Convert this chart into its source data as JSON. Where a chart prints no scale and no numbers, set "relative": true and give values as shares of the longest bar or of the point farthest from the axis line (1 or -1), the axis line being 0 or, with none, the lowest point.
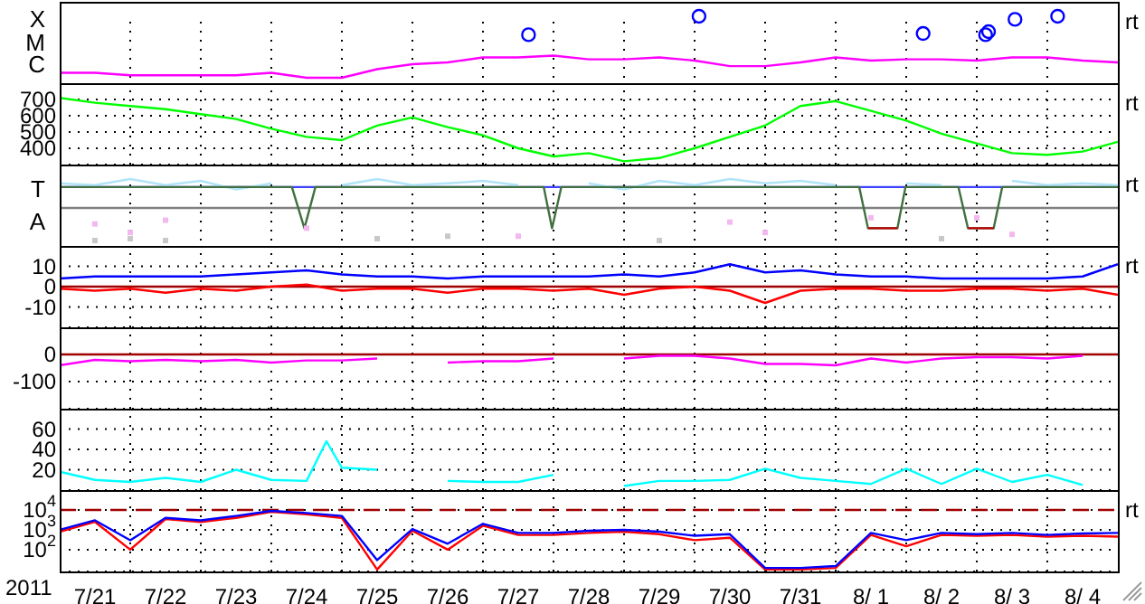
{
  "chart_data": [
    {
      "type": "line",
      "relative": true,
      "grid": "x",
      "tick_labels": "y",
      "annotations": [
        "X",
        "M",
        "C",
        "rt"
      ],
      "x": [
        "2011-07-21T00:00",
        "2011-07-21T12:00",
        "2011-07-22T00:00",
        "2011-07-22T12:00",
        "2011-07-23T00:00",
        "2011-07-23T12:00",
        "2011-07-24T00:00",
        "2011-07-24T12:00",
        "2011-07-25T00:00",
        "2011-07-25T12:00",
        "2011-07-26T00:00",
        "2011-07-26T12:00",
        "2011-07-27T00:00",
        "2011-07-27T12:00",
        "2011-07-28T00:00",
        "2011-07-28T12:00",
        "2011-07-29T00:00",
        "2011-07-29T12:00",
        "2011-07-30T00:00",
        "2011-07-30T12:00",
        "2011-07-31T00:00",
        "2011-07-31T12:00",
        "2011-08-01T00:00",
        "2011-08-01T12:00",
        "2011-08-02T00:00",
        "2011-08-02T12:00",
        "2011-08-03T00:00",
        "2011-08-03T12:00",
        "2011-08-04T00:00",
        "2011-08-04T12:00",
        "2011-08-05T00:00"
      ],
      "xlim": [
        "2011-07-21",
        "2011-08-05"
      ],
      "xticks": [
        {
          "value": "2011-07-22",
          "label": null
        },
        {
          "value": "2011-07-23",
          "label": null
        },
        {
          "value": "2011-07-24",
          "label": null
        },
        {
          "value": "2011-07-25",
          "label": null
        },
        {
          "value": "2011-07-26",
          "label": null
        },
        {
          "value": "2011-07-27",
          "label": null
        },
        {
          "value": "2011-07-28",
          "label": null
        },
        {
          "value": "2011-07-29",
          "label": null
        },
        {
          "value": "2011-07-30",
          "label": null
        },
        {
          "value": "2011-07-31",
          "label": null
        },
        {
          "value": "2011-08-01",
          "label": null
        },
        {
          "value": "2011-08-02",
          "label": null
        },
        {
          "value": "2011-08-03",
          "label": null
        },
        {
          "value": "2011-08-04",
          "label": null
        }
      ],
      "series": [
        {
          "color": "#ff00ff",
          "values": [
            0.08,
            0.08,
            0.04,
            0.04,
            0.04,
            0.04,
            0.08,
            0,
            0,
            0.14,
            0.22,
            0.25,
            0.33,
            0.33,
            0.36,
            0.3,
            0.3,
            0.33,
            0.28,
            0.19,
            0.19,
            0.25,
            0.33,
            0.28,
            0.3,
            0.3,
            0.28,
            0.33,
            0.33,
            0.28,
            0.25
          ]
        },
        {
          "type": "scatter",
          "marker": "circle",
          "color": "#0000ff",
          "x": [
            "2011-07-27T15:30",
            "2011-07-30T01:30",
            "2011-08-02T05:45",
            "2011-08-03T03:00",
            "2011-08-03T04:00",
            "2011-08-03T13:00",
            "2011-08-04T03:30"
          ],
          "values": [
            0.7,
            1,
            0.72,
            0.7,
            0.75,
            0.95,
            1
          ]
        }
      ]
    },
    {
      "type": "line",
      "grid": true,
      "tick_labels": "y",
      "annotations": [
        "rt"
      ],
      "x": [
        "2011-07-21T00:00",
        "2011-07-21T12:00",
        "2011-07-22T00:00",
        "2011-07-22T12:00",
        "2011-07-23T00:00",
        "2011-07-23T12:00",
        "2011-07-24T00:00",
        "2011-07-24T12:00",
        "2011-07-25T00:00",
        "2011-07-25T12:00",
        "2011-07-26T00:00",
        "2011-07-26T12:00",
        "2011-07-27T00:00",
        "2011-07-27T12:00",
        "2011-07-28T00:00",
        "2011-07-28T12:00",
        "2011-07-29T00:00",
        "2011-07-29T12:00",
        "2011-07-30T00:00",
        "2011-07-30T12:00",
        "2011-07-31T00:00",
        "2011-07-31T12:00",
        "2011-08-01T00:00",
        "2011-08-01T12:00",
        "2011-08-02T00:00",
        "2011-08-02T12:00",
        "2011-08-03T00:00",
        "2011-08-03T12:00",
        "2011-08-04T00:00",
        "2011-08-04T12:00",
        "2011-08-05T00:00"
      ],
      "xlim": [
        "2011-07-21",
        "2011-08-05"
      ],
      "xticks": [
        {
          "value": "2011-07-22",
          "label": null
        },
        {
          "value": "2011-07-23",
          "label": null
        },
        {
          "value": "2011-07-24",
          "label": null
        },
        {
          "value": "2011-07-25",
          "label": null
        },
        {
          "value": "2011-07-26",
          "label": null
        },
        {
          "value": "2011-07-27",
          "label": null
        },
        {
          "value": "2011-07-28",
          "label": null
        },
        {
          "value": "2011-07-29",
          "label": null
        },
        {
          "value": "2011-07-30",
          "label": null
        },
        {
          "value": "2011-07-31",
          "label": null
        },
        {
          "value": "2011-08-01",
          "label": null
        },
        {
          "value": "2011-08-02",
          "label": null
        },
        {
          "value": "2011-08-03",
          "label": null
        },
        {
          "value": "2011-08-04",
          "label": null
        }
      ],
      "ylim": [
        300,
        800
      ],
      "yticks": [
        400,
        500,
        600,
        700
      ],
      "series": [
        {
          "color": "#00ff00",
          "values": [
            710,
            680,
            660,
            640,
            610,
            580,
            520,
            470,
            450,
            540,
            590,
            530,
            480,
            400,
            350,
            370,
            320,
            340,
            400,
            470,
            540,
            660,
            690,
            630,
            570,
            490,
            430,
            370,
            360,
            380,
            440
          ]
        }
      ]
    },
    {
      "type": "line",
      "relative": true,
      "grid": "x",
      "tick_labels": "y",
      "annotations": [
        "T",
        "A",
        "rt"
      ],
      "x": [
        "2011-07-21T00:00",
        "2011-07-21T12:00",
        "2011-07-22T00:00",
        "2011-07-22T12:00",
        "2011-07-23T00:00",
        "2011-07-23T12:00",
        "2011-07-24T00:00",
        "2011-07-24T12:00",
        "2011-07-25T00:00",
        "2011-07-25T12:00",
        "2011-07-26T00:00",
        "2011-07-26T12:00",
        "2011-07-27T00:00",
        "2011-07-27T12:00",
        "2011-07-28T00:00",
        "2011-07-28T12:00",
        "2011-07-29T00:00",
        "2011-07-29T12:00",
        "2011-07-30T00:00",
        "2011-07-30T12:00",
        "2011-07-31T00:00",
        "2011-07-31T12:00",
        "2011-08-01T00:00",
        "2011-08-01T12:00",
        "2011-08-02T00:00",
        "2011-08-02T12:00",
        "2011-08-03T00:00",
        "2011-08-03T12:00",
        "2011-08-04T00:00",
        "2011-08-04T12:00",
        "2011-08-05T00:00"
      ],
      "xlim": [
        "2011-07-21",
        "2011-08-05"
      ],
      "xticks": [
        {
          "value": "2011-07-22",
          "label": null
        },
        {
          "value": "2011-07-23",
          "label": null
        },
        {
          "value": "2011-07-24",
          "label": null
        },
        {
          "value": "2011-07-25",
          "label": null
        },
        {
          "value": "2011-07-26",
          "label": null
        },
        {
          "value": "2011-07-27",
          "label": null
        },
        {
          "value": "2011-07-28",
          "label": null
        },
        {
          "value": "2011-07-29",
          "label": null
        },
        {
          "value": "2011-07-30",
          "label": null
        },
        {
          "value": "2011-07-31",
          "label": null
        },
        {
          "value": "2011-08-01",
          "label": null
        },
        {
          "value": "2011-08-02",
          "label": null
        },
        {
          "value": "2011-08-03",
          "label": null
        },
        {
          "value": "2011-08-04",
          "label": null
        }
      ],
      "ref_lines": [
        {
          "axis": "y",
          "value": 0.87,
          "color": "#4040ff"
        },
        {
          "axis": "y",
          "value": 0.53,
          "color": "#808080"
        }
      ],
      "series": [
        {
          "color": "#b0e4f8",
          "values": [
            0.93,
            0.9,
            1,
            0.9,
            0.97,
            0.83,
            0.93,
            null,
            0.9,
            1,
            0.9,
            0.93,
            0.97,
            0.9,
            null,
            0.93,
            0.83,
            0.97,
            0.9,
            1,
            0.93,
            0.97,
            0.9,
            null,
            0.93,
            0.9,
            null,
            0.97,
            0.9,
            0.93,
            0.9
          ]
        },
        {
          "type": "scatter",
          "marker": "square",
          "color": "#f4b8f0",
          "values": [
            null,
            0.27,
            0.13,
            0.33,
            null,
            null,
            null,
            0.2,
            null,
            null,
            null,
            null,
            null,
            0.07,
            null,
            null,
            null,
            null,
            null,
            0.3,
            0.13,
            null,
            null,
            0.37,
            null,
            null,
            0.37,
            0.1,
            null,
            null,
            null
          ]
        },
        {
          "type": "scatter",
          "marker": "square",
          "color": "#c8c8c8",
          "values": [
            null,
            0,
            0.03,
            0,
            null,
            null,
            null,
            null,
            null,
            0.03,
            null,
            0.07,
            null,
            null,
            null,
            null,
            null,
            0,
            null,
            null,
            null,
            null,
            null,
            null,
            null,
            0.03,
            null,
            null,
            null,
            null,
            null
          ]
        },
        {
          "color": "#407040",
          "x": [
            "2011-07-21T00:00",
            "2011-07-24T07:00",
            "2011-07-24T11:15",
            "2011-07-24T15:00",
            "2011-07-27T20:40",
            "2011-07-27T23:30",
            "2011-07-28T02:40",
            "2011-08-01T08:00",
            "2011-08-01T11:00",
            "2011-08-01T21:00",
            "2011-08-01T23:45",
            "2011-08-02T17:45",
            "2011-08-02T21:00",
            "2011-08-03T05:45",
            "2011-08-03T08:40",
            "2011-08-05T00:00"
          ],
          "values": [
            0.87,
            0.87,
            0.2,
            0.87,
            0.87,
            0.2,
            0.87,
            0.87,
            0.2,
            0.2,
            0.87,
            0.87,
            0.2,
            0.2,
            0.87,
            0.87
          ]
        },
        {
          "color": "#c00000",
          "x": [
            "2011-08-01T11:00",
            "2011-08-01T21:00",
            "2011-08-02T00:00",
            "2011-08-02T21:00",
            "2011-08-03T05:45"
          ],
          "values": [
            0.2,
            0.2,
            null,
            0.2,
            0.2
          ]
        }
      ]
    },
    {
      "type": "line",
      "grid": true,
      "tick_labels": "y",
      "annotations": [
        "rt"
      ],
      "x": [
        "2011-07-21T00:00",
        "2011-07-21T12:00",
        "2011-07-22T00:00",
        "2011-07-22T12:00",
        "2011-07-23T00:00",
        "2011-07-23T12:00",
        "2011-07-24T00:00",
        "2011-07-24T12:00",
        "2011-07-25T00:00",
        "2011-07-25T12:00",
        "2011-07-26T00:00",
        "2011-07-26T12:00",
        "2011-07-27T00:00",
        "2011-07-27T12:00",
        "2011-07-28T00:00",
        "2011-07-28T12:00",
        "2011-07-29T00:00",
        "2011-07-29T12:00",
        "2011-07-30T00:00",
        "2011-07-30T12:00",
        "2011-07-31T00:00",
        "2011-07-31T12:00",
        "2011-08-01T00:00",
        "2011-08-01T12:00",
        "2011-08-02T00:00",
        "2011-08-02T12:00",
        "2011-08-03T00:00",
        "2011-08-03T12:00",
        "2011-08-04T00:00",
        "2011-08-04T12:00",
        "2011-08-05T00:00"
      ],
      "xlim": [
        "2011-07-21",
        "2011-08-05"
      ],
      "xticks": [
        {
          "value": "2011-07-22",
          "label": null
        },
        {
          "value": "2011-07-23",
          "label": null
        },
        {
          "value": "2011-07-24",
          "label": null
        },
        {
          "value": "2011-07-25",
          "label": null
        },
        {
          "value": "2011-07-26",
          "label": null
        },
        {
          "value": "2011-07-27",
          "label": null
        },
        {
          "value": "2011-07-28",
          "label": null
        },
        {
          "value": "2011-07-29",
          "label": null
        },
        {
          "value": "2011-07-30",
          "label": null
        },
        {
          "value": "2011-07-31",
          "label": null
        },
        {
          "value": "2011-08-01",
          "label": null
        },
        {
          "value": "2011-08-02",
          "label": null
        },
        {
          "value": "2011-08-03",
          "label": null
        },
        {
          "value": "2011-08-04",
          "label": null
        }
      ],
      "ylim": [
        -20,
        20
      ],
      "yticks": [
        -10,
        0,
        10
      ],
      "ref_lines": [
        {
          "axis": "y",
          "value": 0,
          "color": "#a00000"
        }
      ],
      "series": [
        {
          "color": "#0000ff",
          "values": [
            4,
            5,
            5,
            5,
            5,
            6,
            7,
            8,
            6,
            5,
            5,
            4,
            5,
            5,
            5,
            5,
            6,
            5,
            7,
            11,
            7,
            8,
            6,
            5,
            5,
            4,
            4,
            4,
            4,
            5,
            11
          ]
        },
        {
          "color": "#ff0000",
          "values": [
            -1,
            -2,
            -1,
            -3,
            -1,
            -2,
            0,
            1,
            -2,
            -1,
            -1,
            -3,
            -1,
            -1,
            -2,
            -1,
            -4,
            -1,
            0,
            -2,
            -8,
            -2,
            -1,
            -1,
            -2,
            -2,
            -1,
            -1,
            -2,
            -1,
            -4
          ]
        }
      ]
    },
    {
      "type": "line",
      "grid": true,
      "tick_labels": "y",
      "x": [
        "2011-07-21T00:00",
        "2011-07-21T12:00",
        "2011-07-22T00:00",
        "2011-07-22T12:00",
        "2011-07-23T00:00",
        "2011-07-23T12:00",
        "2011-07-24T00:00",
        "2011-07-24T12:00",
        "2011-07-25T00:00",
        "2011-07-25T12:00",
        "2011-07-26T00:00",
        "2011-07-26T12:00",
        "2011-07-27T00:00",
        "2011-07-27T12:00",
        "2011-07-28T00:00",
        "2011-07-28T12:00",
        "2011-07-29T00:00",
        "2011-07-29T12:00",
        "2011-07-30T00:00",
        "2011-07-30T12:00",
        "2011-07-31T00:00",
        "2011-07-31T12:00",
        "2011-08-01T00:00",
        "2011-08-01T12:00",
        "2011-08-02T00:00",
        "2011-08-02T12:00",
        "2011-08-03T00:00",
        "2011-08-03T12:00",
        "2011-08-04T00:00",
        "2011-08-04T12:00"
      ],
      "xlim": [
        "2011-07-21",
        "2011-08-05"
      ],
      "xticks": [
        {
          "value": "2011-07-22",
          "label": null
        },
        {
          "value": "2011-07-23",
          "label": null
        },
        {
          "value": "2011-07-24",
          "label": null
        },
        {
          "value": "2011-07-25",
          "label": null
        },
        {
          "value": "2011-07-26",
          "label": null
        },
        {
          "value": "2011-07-27",
          "label": null
        },
        {
          "value": "2011-07-28",
          "label": null
        },
        {
          "value": "2011-07-29",
          "label": null
        },
        {
          "value": "2011-07-30",
          "label": null
        },
        {
          "value": "2011-07-31",
          "label": null
        },
        {
          "value": "2011-08-01",
          "label": null
        },
        {
          "value": "2011-08-02",
          "label": null
        },
        {
          "value": "2011-08-03",
          "label": null
        },
        {
          "value": "2011-08-04",
          "label": null
        }
      ],
      "ylim": [
        -200,
        100
      ],
      "yticks": [
        -100,
        0
      ],
      "ref_lines": [
        {
          "axis": "y",
          "value": 0,
          "color": "#a00000"
        }
      ],
      "series": [
        {
          "color": "#ff00ff",
          "values": [
            -40,
            -20,
            -25,
            -20,
            -25,
            -20,
            -30,
            -22,
            -22,
            -15,
            null,
            -30,
            -25,
            -25,
            -15,
            null,
            -15,
            -5,
            -5,
            -15,
            -35,
            -35,
            -40,
            -15,
            -30,
            -15,
            -10,
            -10,
            -15,
            -5
          ]
        }
      ]
    },
    {
      "type": "line",
      "grid": true,
      "tick_labels": "y",
      "x": [
        "2011-07-21T00:00",
        "2011-07-21T12:00",
        "2011-07-22T00:00",
        "2011-07-22T12:00",
        "2011-07-23T00:00",
        "2011-07-23T12:00",
        "2011-07-24T00:00",
        "2011-07-24T12:00",
        "2011-07-24T18:45",
        "2011-07-25T00:00",
        "2011-07-25T12:00",
        "2011-07-26T00:00",
        "2011-07-26T12:00",
        "2011-07-27T00:00",
        "2011-07-27T12:00",
        "2011-07-28T00:00",
        "2011-07-28T12:00",
        "2011-07-29T00:00",
        "2011-07-29T12:00",
        "2011-07-30T00:00",
        "2011-07-30T12:00",
        "2011-07-31T00:00",
        "2011-07-31T12:00",
        "2011-08-01T00:00",
        "2011-08-01T12:00",
        "2011-08-02T00:00",
        "2011-08-02T12:00",
        "2011-08-03T00:00",
        "2011-08-03T12:00",
        "2011-08-04T00:00",
        "2011-08-04T12:00"
      ],
      "xlim": [
        "2011-07-21",
        "2011-08-05"
      ],
      "xticks": [
        {
          "value": "2011-07-22",
          "label": null
        },
        {
          "value": "2011-07-23",
          "label": null
        },
        {
          "value": "2011-07-24",
          "label": null
        },
        {
          "value": "2011-07-25",
          "label": null
        },
        {
          "value": "2011-07-26",
          "label": null
        },
        {
          "value": "2011-07-27",
          "label": null
        },
        {
          "value": "2011-07-28",
          "label": null
        },
        {
          "value": "2011-07-29",
          "label": null
        },
        {
          "value": "2011-07-30",
          "label": null
        },
        {
          "value": "2011-07-31",
          "label": null
        },
        {
          "value": "2011-08-01",
          "label": null
        },
        {
          "value": "2011-08-02",
          "label": null
        },
        {
          "value": "2011-08-03",
          "label": null
        },
        {
          "value": "2011-08-04",
          "label": null
        }
      ],
      "ylim": [
        0,
        80
      ],
      "yticks": [
        20,
        40,
        60
      ],
      "series": [
        {
          "color": "#00ffff",
          "values": [
            18,
            10,
            8,
            12,
            8,
            20,
            10,
            9,
            48,
            22,
            20,
            null,
            9,
            8,
            8,
            15,
            null,
            4,
            9,
            9,
            10,
            21,
            12,
            9,
            6,
            21,
            6,
            21,
            8,
            15,
            5
          ]
        }
      ]
    },
    {
      "type": "line",
      "log": "y",
      "grid": true,
      "xlabel": "2011",
      "annotations": [
        "rt"
      ],
      "x": [
        "2011-07-21T00:00",
        "2011-07-21T12:00",
        "2011-07-22T00:00",
        "2011-07-22T12:00",
        "2011-07-23T00:00",
        "2011-07-23T12:00",
        "2011-07-24T00:00",
        "2011-07-24T12:00",
        "2011-07-25T00:00",
        "2011-07-25T12:00",
        "2011-07-26T00:00",
        "2011-07-26T12:00",
        "2011-07-27T00:00",
        "2011-07-27T12:00",
        "2011-07-28T00:00",
        "2011-07-28T12:00",
        "2011-07-29T00:00",
        "2011-07-29T12:00",
        "2011-07-30T00:00",
        "2011-07-30T12:00",
        "2011-07-31T00:00",
        "2011-07-31T12:00",
        "2011-08-01T00:00",
        "2011-08-01T12:00",
        "2011-08-02T00:00",
        "2011-08-02T12:00",
        "2011-08-03T00:00",
        "2011-08-03T12:00",
        "2011-08-04T00:00",
        "2011-08-04T12:00",
        "2011-08-05T00:00"
      ],
      "xlim": [
        "2011-07-21",
        "2011-08-05"
      ],
      "xticks": [
        {
          "value": "2011-07-21T12:00",
          "label": "7/21"
        },
        {
          "value": "2011-07-22T12:00",
          "label": "7/22"
        },
        {
          "value": "2011-07-23T12:00",
          "label": "7/23"
        },
        {
          "value": "2011-07-24T12:00",
          "label": "7/24"
        },
        {
          "value": "2011-07-25T12:00",
          "label": "7/25"
        },
        {
          "value": "2011-07-26T12:00",
          "label": "7/26"
        },
        {
          "value": "2011-07-27T12:00",
          "label": "7/27"
        },
        {
          "value": "2011-07-28T12:00",
          "label": "7/28"
        },
        {
          "value": "2011-07-29T12:00",
          "label": "7/29"
        },
        {
          "value": "2011-07-30T12:00",
          "label": "7/30"
        },
        {
          "value": "2011-07-31T12:00",
          "label": "7/31"
        },
        {
          "value": "2011-08-01T12:00",
          "label": "8/ 1"
        },
        {
          "value": "2011-08-02T12:00",
          "label": "8/ 2"
        },
        {
          "value": "2011-08-03T12:00",
          "label": "8/ 3"
        },
        {
          "value": "2011-08-04T12:00",
          "label": "8/ 4"
        },
        {
          "value": "2011-07-22",
          "label": null
        },
        {
          "value": "2011-07-23",
          "label": null
        },
        {
          "value": "2011-07-24",
          "label": null
        },
        {
          "value": "2011-07-25",
          "label": null
        },
        {
          "value": "2011-07-26",
          "label": null
        },
        {
          "value": "2011-07-27",
          "label": null
        },
        {
          "value": "2011-07-28",
          "label": null
        },
        {
          "value": "2011-07-29",
          "label": null
        },
        {
          "value": "2011-07-30",
          "label": null
        },
        {
          "value": "2011-07-31",
          "label": null
        },
        {
          "value": "2011-08-01",
          "label": null
        },
        {
          "value": "2011-08-02",
          "label": null
        },
        {
          "value": "2011-08-03",
          "label": null
        },
        {
          "value": "2011-08-04",
          "label": null
        }
      ],
      "ylim": [
        8,
        100000
      ],
      "yticks": [
        {
          "value": 100,
          "label": "10$^{2}$"
        },
        {
          "value": 1000,
          "label": "10$^{3}$"
        },
        {
          "value": 10000,
          "label": "10$^{4}$"
        }
      ],
      "ref_lines": [
        {
          "axis": "y",
          "value": 10000,
          "color": "#a00000",
          "line_style": "dashed"
        }
      ],
      "series": [
        {
          "color": "#ff0000",
          "values": [
            800,
            2500,
            100,
            3500,
            2500,
            4000,
            8000,
            6000,
            4000,
            10,
            900,
            100,
            1600,
            550,
            550,
            700,
            800,
            600,
            300,
            400,
            10,
            10,
            12,
            550,
            150,
            550,
            500,
            550,
            450,
            500,
            450
          ]
        },
        {
          "color": "#0000ff",
          "values": [
            1000,
            3000,
            300,
            4000,
            3000,
            5000,
            9000,
            7000,
            5000,
            30,
            1100,
            200,
            2000,
            700,
            700,
            900,
            1000,
            800,
            500,
            600,
            12,
            12,
            15,
            700,
            300,
            700,
            600,
            700,
            550,
            650,
            700
          ]
        }
      ]
    }
  ]
}
